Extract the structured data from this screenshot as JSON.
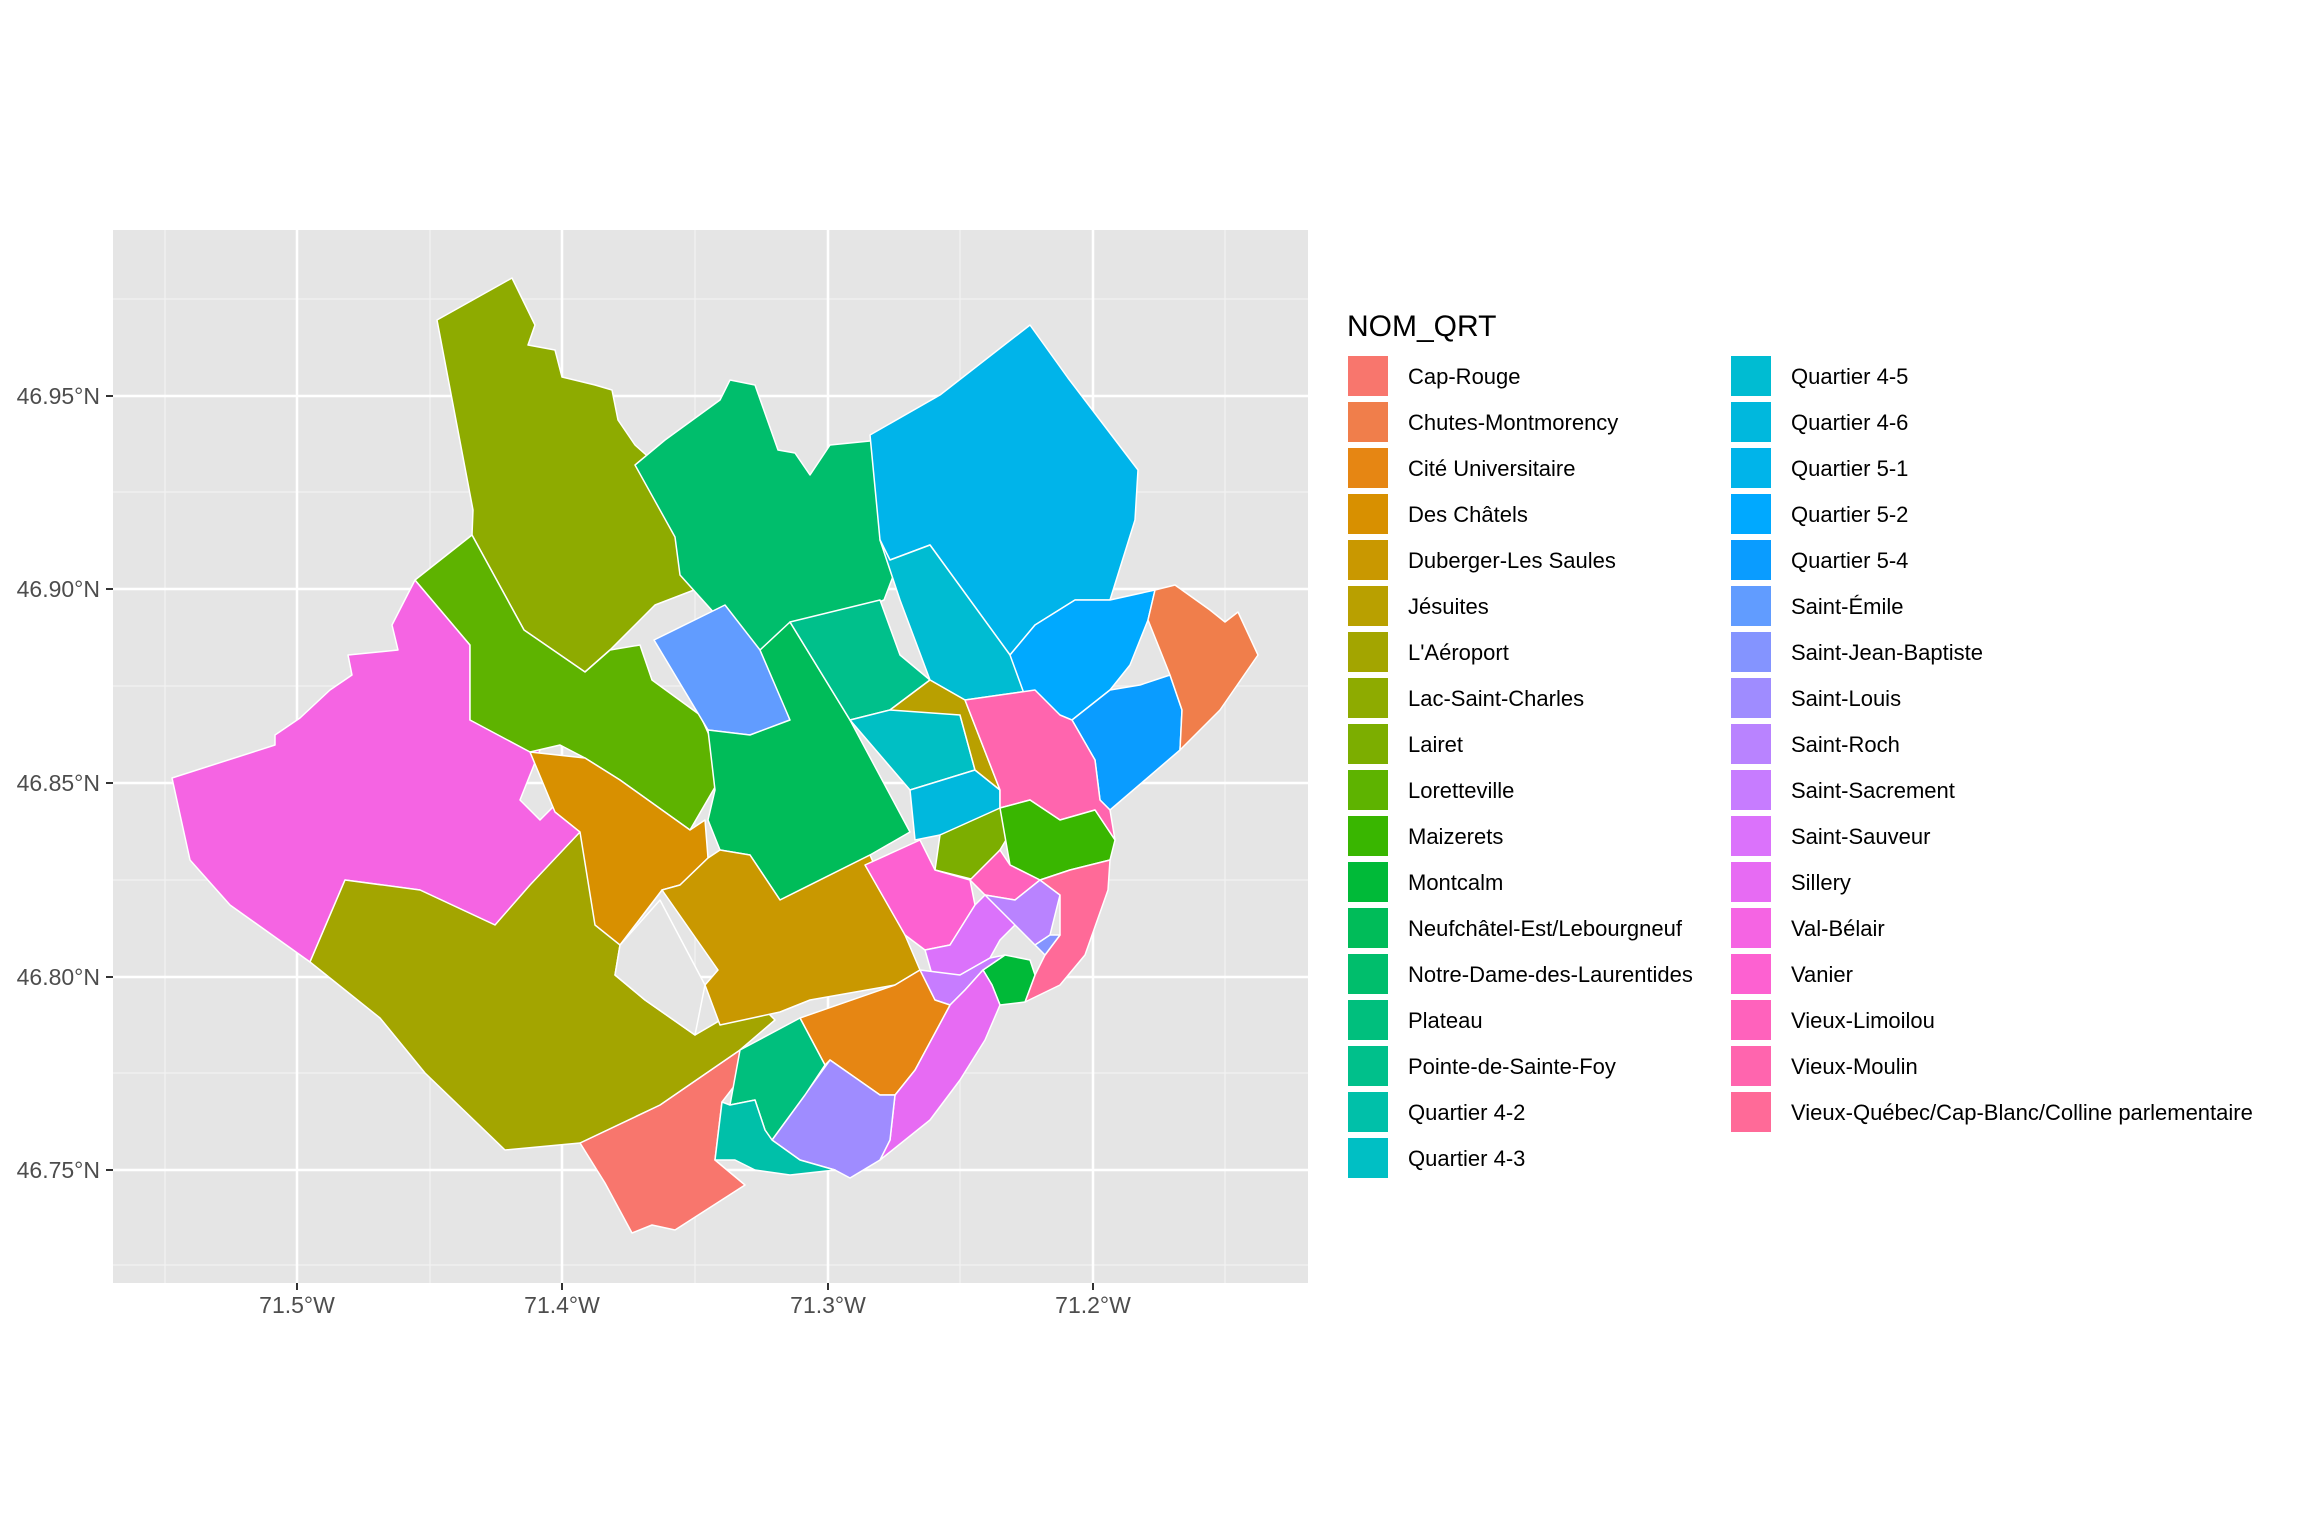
{
  "chart_data": {
    "type": "choropleth",
    "legend": {
      "title": "NOM_QRT",
      "position": "right",
      "entries": [
        {
          "name": "Cap-Rouge",
          "color": "#F8766D"
        },
        {
          "name": "Chutes-Montmorency",
          "color": "#F07E4B"
        },
        {
          "name": "Cité Universitaire",
          "color": "#E68613"
        },
        {
          "name": "Des Châtels",
          "color": "#D89000"
        },
        {
          "name": "Duberger-Les Saules",
          "color": "#C99800"
        },
        {
          "name": "Jésuites",
          "color": "#B9A000"
        },
        {
          "name": "L'Aéroport",
          "color": "#A3A500"
        },
        {
          "name": "Lac-Saint-Charles",
          "color": "#8EAB00"
        },
        {
          "name": "Lairet",
          "color": "#7CAE00"
        },
        {
          "name": "Loretteville",
          "color": "#5EB300"
        },
        {
          "name": "Maizerets",
          "color": "#39B600"
        },
        {
          "name": "Montcalm",
          "color": "#00BA38"
        },
        {
          "name": "Neufchâtel-Est/Lebourgneuf",
          "color": "#00BC59"
        },
        {
          "name": "Notre-Dame-des-Laurentides",
          "color": "#00BE6C"
        },
        {
          "name": "Plateau",
          "color": "#00BF7D"
        },
        {
          "name": "Pointe-de-Sainte-Foy",
          "color": "#00C08B"
        },
        {
          "name": "Quartier 4-2",
          "color": "#00C0A9"
        },
        {
          "name": "Quartier 4-3",
          "color": "#00BFC4"
        },
        {
          "name": "Quartier 4-5",
          "color": "#00BCD2"
        },
        {
          "name": "Quartier 4-6",
          "color": "#00B8DD"
        },
        {
          "name": "Quartier 5-1",
          "color": "#00B4EA"
        },
        {
          "name": "Quartier 5-2",
          "color": "#00A9FF"
        },
        {
          "name": "Quartier 5-4",
          "color": "#0A9CFF"
        },
        {
          "name": "Saint-Émile",
          "color": "#619CFF"
        },
        {
          "name": "Saint-Jean-Baptiste",
          "color": "#8494FF"
        },
        {
          "name": "Saint-Louis",
          "color": "#9F8CFF"
        },
        {
          "name": "Saint-Roch",
          "color": "#B983FF"
        },
        {
          "name": "Saint-Sacrement",
          "color": "#C77CFF"
        },
        {
          "name": "Saint-Sauveur",
          "color": "#DB72FB"
        },
        {
          "name": "Sillery",
          "color": "#E76BF3"
        },
        {
          "name": "Val-Bélair",
          "color": "#F564E3"
        },
        {
          "name": "Vanier",
          "color": "#FD61D1"
        },
        {
          "name": "Vieux-Limoilou",
          "color": "#FF62BC"
        },
        {
          "name": "Vieux-Moulin",
          "color": "#FF65AE"
        },
        {
          "name": "Vieux-Québec/Cap-Blanc/Colline parlementaire",
          "color": "#FF6A98"
        }
      ]
    },
    "x_axis": {
      "ticks": [
        {
          "value": -71.5,
          "label": "71.5°W"
        },
        {
          "value": -71.4,
          "label": "71.4°W"
        },
        {
          "value": -71.3,
          "label": "71.3°W"
        },
        {
          "value": -71.2,
          "label": "71.2°W"
        }
      ],
      "range": [
        -71.57,
        -71.12
      ]
    },
    "y_axis": {
      "ticks": [
        {
          "value": 46.75,
          "label": "46.75°N"
        },
        {
          "value": 46.8,
          "label": "46.80°N"
        },
        {
          "value": 46.85,
          "label": "46.85°N"
        },
        {
          "value": 46.9,
          "label": "46.90°N"
        },
        {
          "value": 46.95,
          "label": "46.95°N"
        }
      ],
      "range": [
        46.722,
        46.994
      ]
    },
    "grid": true,
    "panel_background": "#E5E5E5",
    "region_border_color": "#FFFFFF"
  }
}
